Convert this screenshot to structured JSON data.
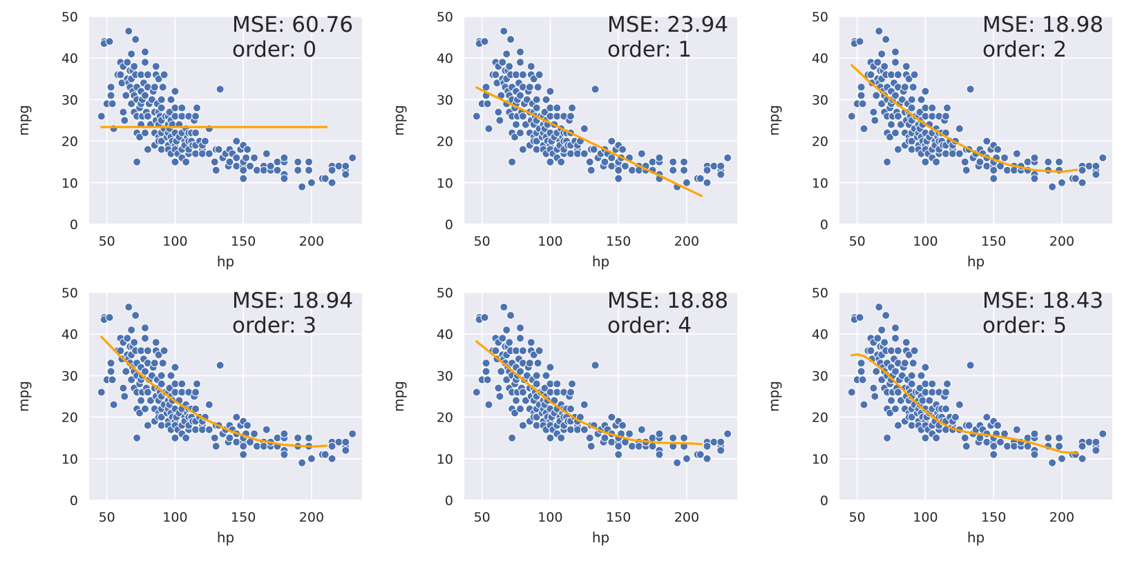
{
  "chart_data": [
    {
      "type": "scatter",
      "xlabel": "hp",
      "ylabel": "mpg",
      "xlim": [
        37,
        237
      ],
      "ylim": [
        0,
        50
      ],
      "xticks": [
        50,
        100,
        150,
        200
      ],
      "yticks": [
        0,
        10,
        20,
        30,
        40,
        50
      ],
      "mse_text": "MSE: 60.76",
      "order_text": "order: 0",
      "fit": {
        "x": [
          46,
          211
        ],
        "y": [
          23.4,
          23.4
        ]
      }
    },
    {
      "type": "scatter",
      "xlabel": "hp",
      "ylabel": "mpg",
      "xlim": [
        37,
        237
      ],
      "ylim": [
        0,
        50
      ],
      "xticks": [
        50,
        100,
        150,
        200
      ],
      "yticks": [
        0,
        10,
        20,
        30,
        40,
        50
      ],
      "mse_text": "MSE: 23.94",
      "order_text": "order: 1",
      "fit": {
        "x": [
          46,
          211
        ],
        "y": [
          32.9,
          6.8
        ]
      }
    },
    {
      "type": "scatter",
      "xlabel": "hp",
      "ylabel": "mpg",
      "xlim": [
        37,
        237
      ],
      "ylim": [
        0,
        50
      ],
      "xticks": [
        50,
        100,
        150,
        200
      ],
      "yticks": [
        0,
        10,
        20,
        30,
        40,
        50
      ],
      "mse_text": "MSE: 18.98",
      "order_text": "order: 2",
      "fit": {
        "x": [
          46,
          60,
          80,
          100,
          120,
          140,
          160,
          180,
          200,
          211
        ],
        "y": [
          38.3,
          34.0,
          28.7,
          24.0,
          20.1,
          16.8,
          14.4,
          13.0,
          12.6,
          13.1
        ]
      }
    },
    {
      "type": "scatter",
      "xlabel": "hp",
      "ylabel": "mpg",
      "xlim": [
        37,
        237
      ],
      "ylim": [
        0,
        50
      ],
      "xticks": [
        50,
        100,
        150,
        200
      ],
      "yticks": [
        0,
        10,
        20,
        30,
        40,
        50
      ],
      "mse_text": "MSE: 18.94",
      "order_text": "order: 3",
      "fit": {
        "x": [
          46,
          60,
          80,
          100,
          120,
          140,
          160,
          180,
          200,
          211
        ],
        "y": [
          39.3,
          34.6,
          28.8,
          23.8,
          19.8,
          16.7,
          14.5,
          13.3,
          12.9,
          13.1
        ]
      }
    },
    {
      "type": "scatter",
      "xlabel": "hp",
      "ylabel": "mpg",
      "xlim": [
        37,
        237
      ],
      "ylim": [
        0,
        50
      ],
      "xticks": [
        50,
        100,
        150,
        200
      ],
      "yticks": [
        0,
        10,
        20,
        30,
        40,
        50
      ],
      "mse_text": "MSE: 18.88",
      "order_text": "order: 4",
      "fit": {
        "x": [
          46,
          60,
          80,
          100,
          120,
          140,
          160,
          180,
          200,
          211
        ],
        "y": [
          38.2,
          34.5,
          29.0,
          23.7,
          19.3,
          16.3,
          14.5,
          13.8,
          13.7,
          13.5
        ]
      }
    },
    {
      "type": "scatter",
      "xlabel": "hp",
      "ylabel": "mpg",
      "xlim": [
        37,
        237
      ],
      "ylim": [
        0,
        50
      ],
      "xticks": [
        50,
        100,
        150,
        200
      ],
      "yticks": [
        0,
        10,
        20,
        30,
        40,
        50
      ],
      "mse_text": "MSE: 18.43",
      "order_text": "order: 5",
      "fit": {
        "x": [
          46,
          50,
          55,
          60,
          70,
          80,
          90,
          100,
          110,
          120,
          130,
          140,
          150,
          160,
          170,
          180,
          190,
          200,
          211
        ],
        "y": [
          34.9,
          35.1,
          34.7,
          33.7,
          31.0,
          27.8,
          24.5,
          21.4,
          18.9,
          17.2,
          16.4,
          15.9,
          15.5,
          15.0,
          14.4,
          13.6,
          12.6,
          11.6,
          11.3
        ]
      }
    }
  ],
  "scatter_points": [
    [
      46,
      26
    ],
    [
      48,
      44
    ],
    [
      48,
      43.5
    ],
    [
      50,
      29
    ],
    [
      52,
      44
    ],
    [
      53,
      31
    ],
    [
      53,
      33
    ],
    [
      54,
      29
    ],
    [
      55,
      23
    ],
    [
      58,
      36
    ],
    [
      60,
      36
    ],
    [
      60,
      39
    ],
    [
      61,
      34
    ],
    [
      62,
      27
    ],
    [
      62,
      38
    ],
    [
      63,
      25
    ],
    [
      64,
      31
    ],
    [
      65,
      39
    ],
    [
      65,
      35
    ],
    [
      66,
      34
    ],
    [
      66,
      46.5
    ],
    [
      67,
      37
    ],
    [
      67,
      33
    ],
    [
      68,
      41
    ],
    [
      68,
      29
    ],
    [
      68,
      35
    ],
    [
      69,
      37
    ],
    [
      69,
      32
    ],
    [
      70,
      38
    ],
    [
      70,
      31
    ],
    [
      70,
      27
    ],
    [
      71,
      36
    ],
    [
      71,
      44.5
    ],
    [
      72,
      30
    ],
    [
      72,
      33
    ],
    [
      72,
      22
    ],
    [
      72,
      26
    ],
    [
      72,
      15
    ],
    [
      74,
      21
    ],
    [
      74,
      28
    ],
    [
      75,
      36
    ],
    [
      75,
      29
    ],
    [
      75,
      24
    ],
    [
      75,
      32
    ],
    [
      76,
      26
    ],
    [
      76,
      30
    ],
    [
      77,
      34
    ],
    [
      78,
      39
    ],
    [
      78,
      22
    ],
    [
      78,
      31
    ],
    [
      78,
      41.5
    ],
    [
      79,
      27
    ],
    [
      80,
      36
    ],
    [
      80,
      18
    ],
    [
      80,
      26
    ],
    [
      80,
      33
    ],
    [
      81,
      29
    ],
    [
      82,
      24
    ],
    [
      83,
      30
    ],
    [
      84,
      32
    ],
    [
      85,
      33
    ],
    [
      85,
      22
    ],
    [
      85,
      27
    ],
    [
      85,
      19
    ],
    [
      86,
      36
    ],
    [
      86,
      25
    ],
    [
      86,
      38
    ],
    [
      87,
      29
    ],
    [
      88,
      24
    ],
    [
      88,
      35
    ],
    [
      88,
      27
    ],
    [
      88,
      21
    ],
    [
      88,
      20
    ],
    [
      89,
      26
    ],
    [
      90,
      30
    ],
    [
      90,
      25
    ],
    [
      90,
      22
    ],
    [
      90,
      20
    ],
    [
      90,
      18
    ],
    [
      90,
      28
    ],
    [
      91,
      33
    ],
    [
      92,
      23
    ],
    [
      92,
      36
    ],
    [
      93,
      26
    ],
    [
      94,
      21
    ],
    [
      95,
      26
    ],
    [
      95,
      24
    ],
    [
      95,
      19
    ],
    [
      95,
      22
    ],
    [
      95,
      18
    ],
    [
      96,
      27
    ],
    [
      96,
      23
    ],
    [
      97,
      25
    ],
    [
      97,
      21
    ],
    [
      97,
      17
    ],
    [
      97,
      30
    ],
    [
      98,
      20
    ],
    [
      98,
      24
    ],
    [
      100,
      22
    ],
    [
      100,
      26
    ],
    [
      100,
      19
    ],
    [
      100,
      18
    ],
    [
      100,
      15
    ],
    [
      100,
      32
    ],
    [
      100,
      28
    ],
    [
      101,
      20
    ],
    [
      102,
      17
    ],
    [
      103,
      21
    ],
    [
      103,
      24
    ],
    [
      105,
      22
    ],
    [
      105,
      18
    ],
    [
      105,
      26
    ],
    [
      105,
      16
    ],
    [
      105,
      28
    ],
    [
      107,
      20
    ],
    [
      107,
      19
    ],
    [
      108,
      23
    ],
    [
      108,
      15
    ],
    [
      109,
      21
    ],
    [
      110,
      22
    ],
    [
      110,
      20
    ],
    [
      110,
      17
    ],
    [
      110,
      26
    ],
    [
      110,
      18
    ],
    [
      112,
      22
    ],
    [
      112,
      20
    ],
    [
      113,
      19
    ],
    [
      114,
      25
    ],
    [
      115,
      17
    ],
    [
      115,
      22
    ],
    [
      115,
      19
    ],
    [
      115,
      26
    ],
    [
      116,
      28
    ],
    [
      118,
      20
    ],
    [
      120,
      18
    ],
    [
      120,
      17
    ],
    [
      120,
      19
    ],
    [
      122,
      20
    ],
    [
      125,
      17
    ],
    [
      125,
      23
    ],
    [
      129,
      15
    ],
    [
      130,
      18
    ],
    [
      130,
      13
    ],
    [
      132,
      18
    ],
    [
      133,
      32.5
    ],
    [
      135,
      16
    ],
    [
      137,
      17
    ],
    [
      139,
      14
    ],
    [
      140,
      18
    ],
    [
      140,
      15
    ],
    [
      142,
      17
    ],
    [
      145,
      20
    ],
    [
      145,
      14
    ],
    [
      145,
      16
    ],
    [
      148,
      18
    ],
    [
      150,
      19
    ],
    [
      150,
      14
    ],
    [
      150,
      15
    ],
    [
      150,
      13
    ],
    [
      150,
      11
    ],
    [
      152,
      16
    ],
    [
      153,
      18
    ],
    [
      155,
      14
    ],
    [
      158,
      16
    ],
    [
      160,
      13
    ],
    [
      165,
      14
    ],
    [
      165,
      13
    ],
    [
      167,
      17
    ],
    [
      170,
      13
    ],
    [
      170,
      14
    ],
    [
      175,
      15
    ],
    [
      175,
      13
    ],
    [
      180,
      15
    ],
    [
      180,
      16
    ],
    [
      180,
      12
    ],
    [
      180,
      11
    ],
    [
      190,
      15
    ],
    [
      190,
      13
    ],
    [
      193,
      9
    ],
    [
      198,
      13
    ],
    [
      198,
      15
    ],
    [
      200,
      10
    ],
    [
      208,
      11
    ],
    [
      210,
      11
    ],
    [
      215,
      14
    ],
    [
      215,
      13
    ],
    [
      215,
      10
    ],
    [
      220,
      14
    ],
    [
      225,
      13
    ],
    [
      225,
      14
    ],
    [
      225,
      12
    ],
    [
      230,
      16
    ]
  ]
}
